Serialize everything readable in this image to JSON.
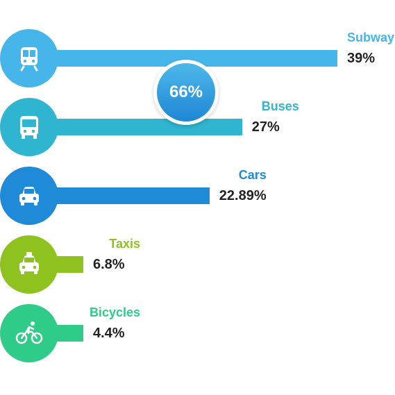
{
  "chart_data": {
    "type": "bar",
    "orientation": "horizontal",
    "categories": [
      "Subway",
      "Buses",
      "Cars",
      "Taxis",
      "Bicycles"
    ],
    "values": [
      39,
      27,
      22.89,
      6.8,
      4.4
    ],
    "value_labels": [
      "39%",
      "27%",
      "22.89%",
      "6.8%",
      "4.4%"
    ],
    "colors": [
      "#46b6ea",
      "#2fb5cf",
      "#1f8ad8",
      "#8dc21f",
      "#2fcb88"
    ],
    "icons": [
      "subway-icon",
      "bus-icon",
      "car-icon",
      "taxi-icon",
      "bicycle-icon"
    ],
    "callout": {
      "text": "66%",
      "color": "#2c9be0"
    },
    "xlim": [
      0,
      39
    ],
    "grid": false
  }
}
